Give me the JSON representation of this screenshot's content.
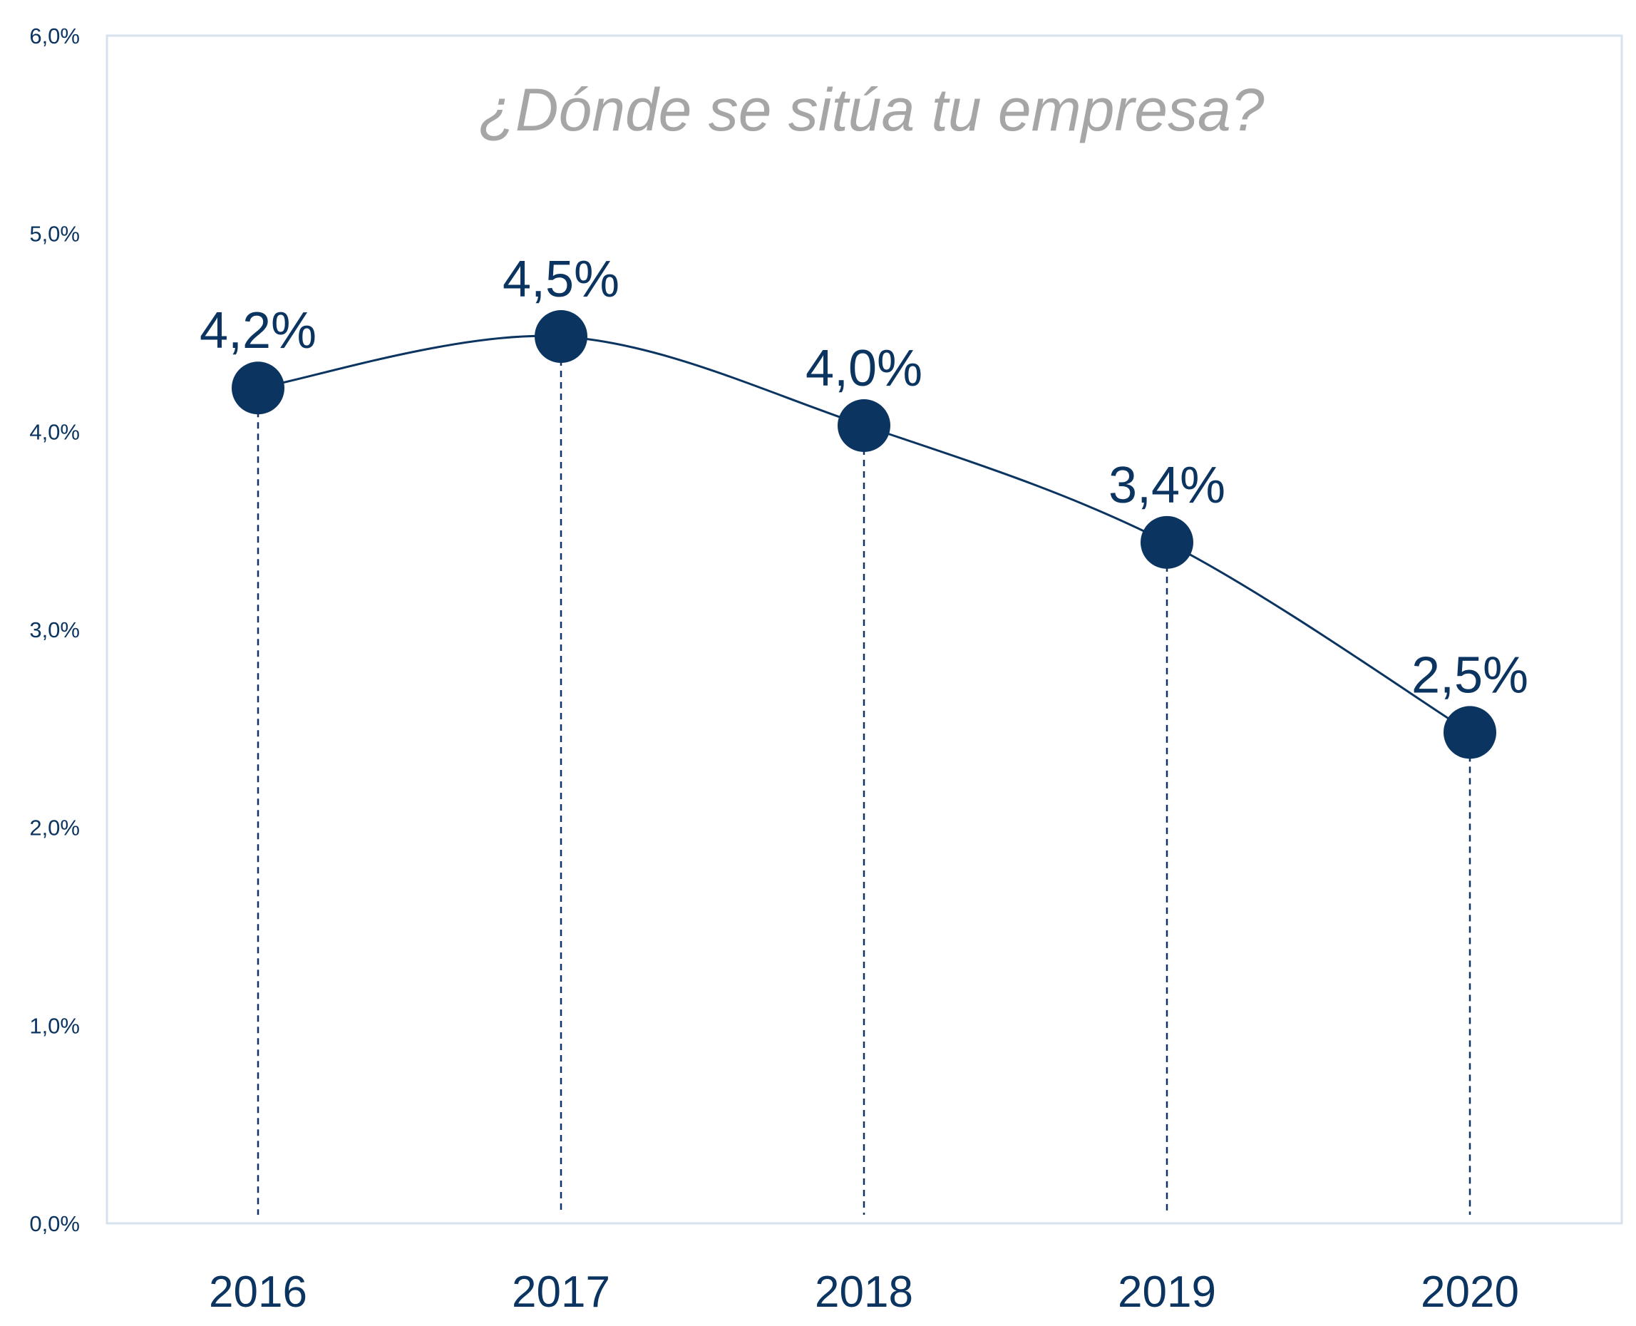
{
  "chart_data": {
    "type": "line",
    "title": "¿Dónde se sitúa tu empresa?",
    "categories": [
      "2016",
      "2017",
      "2018",
      "2019",
      "2020"
    ],
    "series": [
      {
        "values": [
          4.22,
          4.48,
          4.03,
          3.44,
          2.48
        ],
        "labels": [
          "4,2%",
          "4,5%",
          "4,0%",
          "3,4%",
          "2,5%"
        ]
      }
    ],
    "ylim": [
      0,
      6
    ],
    "yticks": [
      0,
      1,
      2,
      3,
      4,
      5,
      6
    ],
    "ytick_labels": [
      "0,0%",
      "1,0%",
      "2,0%",
      "3,0%",
      "4,0%",
      "5,0%",
      "6,0%"
    ],
    "line_style": "smooth",
    "drop_lines": "dashed",
    "grid": false,
    "legend": "none",
    "colors": {
      "series": "#0b3560",
      "title": "#a6a6a6",
      "plot_border": "#d6e2ee",
      "text": "#0b3560"
    }
  }
}
